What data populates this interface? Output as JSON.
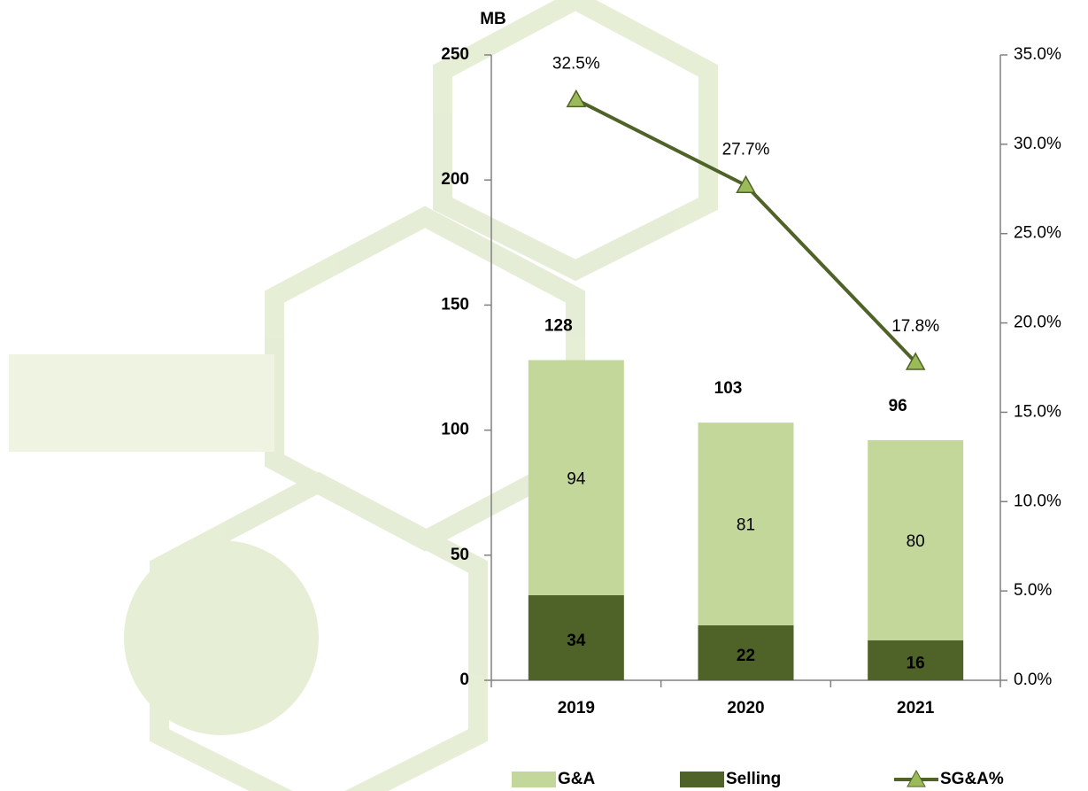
{
  "chart_data": {
    "type": "bar",
    "stacked": true,
    "y_axis_label": "MB",
    "categories": [
      "2019",
      "2020",
      "2021"
    ],
    "series": [
      {
        "name": "Selling",
        "color": "#4f6228",
        "values": [
          34,
          22,
          16
        ]
      },
      {
        "name": "G&A",
        "color": "#c4d79b",
        "values": [
          94,
          81,
          80
        ]
      },
      {
        "name": "SG&A%",
        "type": "line",
        "axis": "y2",
        "color": "#4f6228",
        "marker_color": "#9bbb59",
        "values": [
          32.5,
          27.7,
          17.8
        ],
        "value_labels": [
          "32.5%",
          "27.7%",
          "17.8%"
        ]
      }
    ],
    "totals": [
      128,
      103,
      96
    ],
    "ylim": [
      0,
      250
    ],
    "yticks": [
      0,
      50,
      100,
      150,
      200,
      250
    ],
    "y2lim": [
      0,
      35
    ],
    "y2ticks": [
      {
        "value": 0,
        "label": "0.0%"
      },
      {
        "value": 5,
        "label": "5.0%"
      },
      {
        "value": 10,
        "label": "10.0%"
      },
      {
        "value": 15,
        "label": "15.0%"
      },
      {
        "value": 20,
        "label": "20.0%"
      },
      {
        "value": 25,
        "label": "25.0%"
      },
      {
        "value": 30,
        "label": "30.0%"
      },
      {
        "value": 35,
        "label": "35.0%"
      }
    ],
    "grid": false
  }
}
